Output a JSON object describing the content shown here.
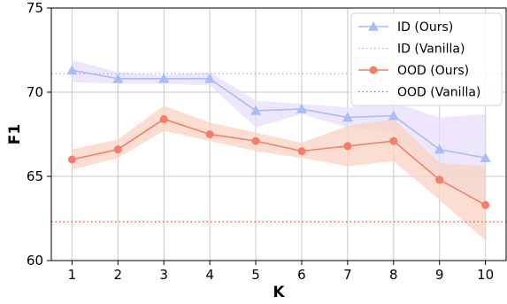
{
  "chart_data": {
    "type": "line",
    "title": "",
    "xlabel": "K",
    "ylabel": "F1",
    "x": [
      1,
      2,
      3,
      4,
      5,
      6,
      7,
      8,
      9,
      10
    ],
    "xlim": [
      0.55,
      10.45
    ],
    "ylim": [
      60,
      75
    ],
    "yticks": [
      60,
      65,
      70,
      75
    ],
    "grid": true,
    "legend_position": "top-right",
    "series": [
      {
        "name": "ID (Ours)",
        "style": "line-marker",
        "marker": "triangle",
        "color": "#a7bdf5",
        "band_color": "#e8ddfb",
        "values": [
          71.3,
          70.8,
          70.8,
          70.8,
          68.9,
          69.0,
          68.5,
          68.6,
          66.6,
          66.1
        ],
        "upper": [
          71.9,
          71.2,
          71.0,
          71.2,
          69.5,
          69.3,
          69.1,
          69.4,
          68.5,
          68.7
        ],
        "lower": [
          70.6,
          70.5,
          70.5,
          70.4,
          67.9,
          68.7,
          67.9,
          67.6,
          64.7,
          63.5
        ]
      },
      {
        "name": "ID (Vanilla)",
        "style": "dotted",
        "color": "#b2a7e8",
        "value": 71.1
      },
      {
        "name": "OOD (Ours)",
        "style": "line-marker",
        "marker": "circle",
        "color": "#f47d6b",
        "band_color": "#f9d3c2",
        "values": [
          66.0,
          66.6,
          68.4,
          67.5,
          67.1,
          66.5,
          66.8,
          67.1,
          64.8,
          63.3
        ],
        "upper": [
          66.6,
          67.2,
          69.2,
          68.2,
          67.6,
          67.0,
          68.0,
          68.4,
          65.8,
          65.6
        ],
        "lower": [
          65.4,
          66.1,
          67.7,
          67.1,
          66.5,
          66.1,
          65.6,
          65.9,
          63.6,
          61.2
        ]
      },
      {
        "name": "OOD (Vanilla)",
        "style": "dotted",
        "color": "#f05a3c",
        "value": 62.3
      }
    ]
  }
}
